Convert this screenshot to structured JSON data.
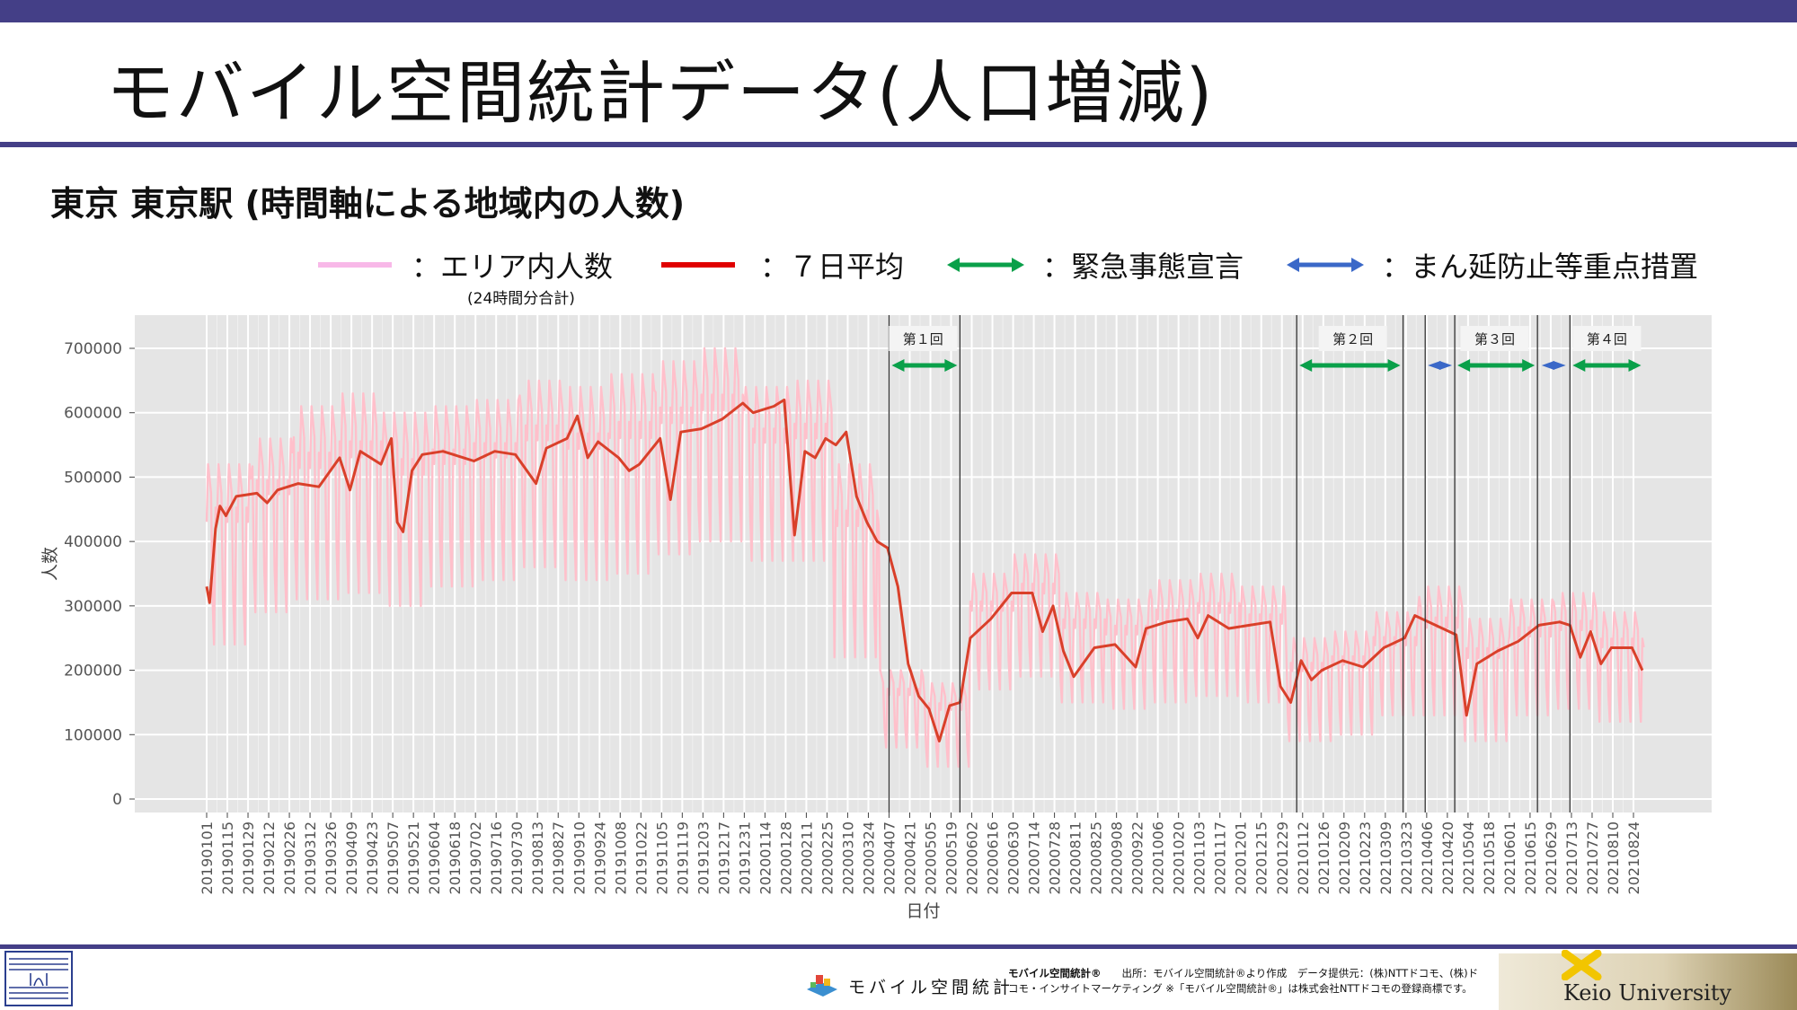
{
  "slide": {
    "title": "モバイル空間統計データ(人口増減)",
    "subtitle": "東京 東京駅 (時間軸による地域内の人数)"
  },
  "legend": {
    "items": [
      {
        "label": "：エリア内人数",
        "color": "#f8b8e8",
        "style": "line"
      },
      {
        "label": "：７日平均",
        "color": "#e00000",
        "style": "line"
      },
      {
        "label": "：緊急事態宣言",
        "color": "#0aa04a",
        "style": "double-arrow"
      },
      {
        "label": "：まん延防止等重点措置",
        "color": "#3a68c8",
        "style": "double-arrow"
      }
    ],
    "sub_label": "(24時間分合計)"
  },
  "chart_data": {
    "type": "line",
    "xlabel": "日付",
    "ylabel": "人数",
    "ylim": [
      0,
      720000
    ],
    "yticks": [
      0,
      100000,
      200000,
      300000,
      400000,
      500000,
      600000,
      700000
    ],
    "ytick_labels": [
      "0",
      "100000",
      "200000",
      "300000",
      "400000",
      "500000",
      "600000",
      "700000"
    ],
    "xlim": [
      "20190101",
      "20210831"
    ],
    "xtick_labels": [
      "20190101",
      "20190115",
      "20190129",
      "20190212",
      "20190226",
      "20190312",
      "20190326",
      "20190409",
      "20190423",
      "20190507",
      "20190521",
      "20190604",
      "20190618",
      "20190702",
      "20190716",
      "20190730",
      "20190813",
      "20190827",
      "20190910",
      "20190924",
      "20191008",
      "20191022",
      "20191105",
      "20191119",
      "20191203",
      "20191217",
      "20191231",
      "20200114",
      "20200128",
      "20200211",
      "20200225",
      "20200310",
      "20200324",
      "20200407",
      "20200421",
      "20200505",
      "20200519",
      "20200602",
      "20200616",
      "20200630",
      "20200714",
      "20200728",
      "20200811",
      "20200825",
      "20200908",
      "20200922",
      "20201006",
      "20201020",
      "20201103",
      "20201117",
      "20201201",
      "20201215",
      "20201229",
      "20210112",
      "20210126",
      "20210209",
      "20210223",
      "20210309",
      "20210323",
      "20210406",
      "20210420",
      "20210504",
      "20210518",
      "20210601",
      "20210615",
      "20210629",
      "20210713",
      "20210727",
      "20210810",
      "20210824"
    ],
    "background": "#e5e5e5",
    "grid": true,
    "series": [
      {
        "name": "エリア内人数",
        "color": "#ffc0cb",
        "note": "daily values; weekly pattern of weekday highs and weekend lows",
        "weekday_high_by_month": [
          {
            "month": "2019-01",
            "high": 520000,
            "low": 240000
          },
          {
            "month": "2019-02",
            "high": 560000,
            "low": 290000
          },
          {
            "month": "2019-03",
            "high": 610000,
            "low": 310000
          },
          {
            "month": "2019-04",
            "high": 630000,
            "low": 320000
          },
          {
            "month": "2019-05",
            "high": 600000,
            "low": 300000
          },
          {
            "month": "2019-06",
            "high": 610000,
            "low": 330000
          },
          {
            "month": "2019-07",
            "high": 620000,
            "low": 340000
          },
          {
            "month": "2019-08",
            "high": 650000,
            "low": 360000
          },
          {
            "month": "2019-09",
            "high": 640000,
            "low": 340000
          },
          {
            "month": "2019-10",
            "high": 660000,
            "low": 350000
          },
          {
            "month": "2019-11",
            "high": 680000,
            "low": 380000
          },
          {
            "month": "2019-12",
            "high": 700000,
            "low": 400000
          },
          {
            "month": "2020-01",
            "high": 640000,
            "low": 370000
          },
          {
            "month": "2020-02",
            "high": 650000,
            "low": 370000
          },
          {
            "month": "2020-03",
            "high": 520000,
            "low": 220000
          },
          {
            "month": "2020-04",
            "high": 200000,
            "low": 80000
          },
          {
            "month": "2020-05",
            "high": 180000,
            "low": 50000
          },
          {
            "month": "2020-06",
            "high": 350000,
            "low": 170000
          },
          {
            "month": "2020-07",
            "high": 380000,
            "low": 190000
          },
          {
            "month": "2020-08",
            "high": 320000,
            "low": 150000
          },
          {
            "month": "2020-09",
            "high": 310000,
            "low": 140000
          },
          {
            "month": "2020-10",
            "high": 340000,
            "low": 150000
          },
          {
            "month": "2020-11",
            "high": 350000,
            "low": 160000
          },
          {
            "month": "2020-12",
            "high": 330000,
            "low": 150000
          },
          {
            "month": "2021-01",
            "high": 250000,
            "low": 90000
          },
          {
            "month": "2021-02",
            "high": 260000,
            "low": 100000
          },
          {
            "month": "2021-03",
            "high": 290000,
            "low": 130000
          },
          {
            "month": "2021-04",
            "high": 330000,
            "low": 130000
          },
          {
            "month": "2021-05",
            "high": 280000,
            "low": 90000
          },
          {
            "month": "2021-06",
            "high": 310000,
            "low": 130000
          },
          {
            "month": "2021-07",
            "high": 320000,
            "low": 140000
          },
          {
            "month": "2021-08",
            "high": 290000,
            "low": 120000
          }
        ]
      },
      {
        "name": "7日平均",
        "color": "#d9402a",
        "points": [
          {
            "x": "20190101",
            "y": 330000
          },
          {
            "x": "20190103",
            "y": 305000
          },
          {
            "x": "20190107",
            "y": 420000
          },
          {
            "x": "20190110",
            "y": 455000
          },
          {
            "x": "20190114",
            "y": 440000
          },
          {
            "x": "20190121",
            "y": 470000
          },
          {
            "x": "20190204",
            "y": 475000
          },
          {
            "x": "20190211",
            "y": 460000
          },
          {
            "x": "20190218",
            "y": 480000
          },
          {
            "x": "20190304",
            "y": 490000
          },
          {
            "x": "20190318",
            "y": 485000
          },
          {
            "x": "20190401",
            "y": 530000
          },
          {
            "x": "20190408",
            "y": 480000
          },
          {
            "x": "20190415",
            "y": 540000
          },
          {
            "x": "20190429",
            "y": 520000
          },
          {
            "x": "20190506",
            "y": 560000
          },
          {
            "x": "20190510",
            "y": 430000
          },
          {
            "x": "20190514",
            "y": 415000
          },
          {
            "x": "20190520",
            "y": 510000
          },
          {
            "x": "20190527",
            "y": 535000
          },
          {
            "x": "20190610",
            "y": 540000
          },
          {
            "x": "20190701",
            "y": 525000
          },
          {
            "x": "20190715",
            "y": 540000
          },
          {
            "x": "20190729",
            "y": 535000
          },
          {
            "x": "20190812",
            "y": 490000
          },
          {
            "x": "20190819",
            "y": 545000
          },
          {
            "x": "20190902",
            "y": 560000
          },
          {
            "x": "20190909",
            "y": 595000
          },
          {
            "x": "20190916",
            "y": 530000
          },
          {
            "x": "20190923",
            "y": 555000
          },
          {
            "x": "20191007",
            "y": 530000
          },
          {
            "x": "20191014",
            "y": 510000
          },
          {
            "x": "20191021",
            "y": 520000
          },
          {
            "x": "20191104",
            "y": 560000
          },
          {
            "x": "20191111",
            "y": 465000
          },
          {
            "x": "20191118",
            "y": 570000
          },
          {
            "x": "20191202",
            "y": 575000
          },
          {
            "x": "20191216",
            "y": 590000
          },
          {
            "x": "20191230",
            "y": 615000
          },
          {
            "x": "20200106",
            "y": 600000
          },
          {
            "x": "20200120",
            "y": 610000
          },
          {
            "x": "20200127",
            "y": 620000
          },
          {
            "x": "20200203",
            "y": 410000
          },
          {
            "x": "20200210",
            "y": 540000
          },
          {
            "x": "20200217",
            "y": 530000
          },
          {
            "x": "20200224",
            "y": 560000
          },
          {
            "x": "20200302",
            "y": 550000
          },
          {
            "x": "20200309",
            "y": 570000
          },
          {
            "x": "20200316",
            "y": 470000
          },
          {
            "x": "20200323",
            "y": 430000
          },
          {
            "x": "20200330",
            "y": 400000
          },
          {
            "x": "20200406",
            "y": 390000
          },
          {
            "x": "20200413",
            "y": 330000
          },
          {
            "x": "20200420",
            "y": 210000
          },
          {
            "x": "20200427",
            "y": 160000
          },
          {
            "x": "20200504",
            "y": 140000
          },
          {
            "x": "20200511",
            "y": 90000
          },
          {
            "x": "20200518",
            "y": 145000
          },
          {
            "x": "20200525",
            "y": 150000
          },
          {
            "x": "20200601",
            "y": 250000
          },
          {
            "x": "20200615",
            "y": 280000
          },
          {
            "x": "20200629",
            "y": 320000
          },
          {
            "x": "20200713",
            "y": 320000
          },
          {
            "x": "20200720",
            "y": 260000
          },
          {
            "x": "20200727",
            "y": 300000
          },
          {
            "x": "20200803",
            "y": 230000
          },
          {
            "x": "20200810",
            "y": 190000
          },
          {
            "x": "20200824",
            "y": 235000
          },
          {
            "x": "20200907",
            "y": 240000
          },
          {
            "x": "20200921",
            "y": 205000
          },
          {
            "x": "20200928",
            "y": 265000
          },
          {
            "x": "20201012",
            "y": 275000
          },
          {
            "x": "20201026",
            "y": 280000
          },
          {
            "x": "20201102",
            "y": 250000
          },
          {
            "x": "20201109",
            "y": 285000
          },
          {
            "x": "20201123",
            "y": 265000
          },
          {
            "x": "20201207",
            "y": 270000
          },
          {
            "x": "20201221",
            "y": 275000
          },
          {
            "x": "20201228",
            "y": 175000
          },
          {
            "x": "20210104",
            "y": 150000
          },
          {
            "x": "20210111",
            "y": 215000
          },
          {
            "x": "20210118",
            "y": 185000
          },
          {
            "x": "20210125",
            "y": 200000
          },
          {
            "x": "20210208",
            "y": 215000
          },
          {
            "x": "20210222",
            "y": 205000
          },
          {
            "x": "20210308",
            "y": 235000
          },
          {
            "x": "20210322",
            "y": 250000
          },
          {
            "x": "20210329",
            "y": 285000
          },
          {
            "x": "20210412",
            "y": 270000
          },
          {
            "x": "20210426",
            "y": 255000
          },
          {
            "x": "20210503",
            "y": 130000
          },
          {
            "x": "20210510",
            "y": 210000
          },
          {
            "x": "20210524",
            "y": 230000
          },
          {
            "x": "20210607",
            "y": 245000
          },
          {
            "x": "20210621",
            "y": 270000
          },
          {
            "x": "20210705",
            "y": 275000
          },
          {
            "x": "20210712",
            "y": 270000
          },
          {
            "x": "20210719",
            "y": 220000
          },
          {
            "x": "20210726",
            "y": 260000
          },
          {
            "x": "20210802",
            "y": 210000
          },
          {
            "x": "20210809",
            "y": 235000
          },
          {
            "x": "20210823",
            "y": 235000
          },
          {
            "x": "20210830",
            "y": 200000
          }
        ]
      }
    ],
    "vertical_lines": [
      "20200407",
      "20200525",
      "20210108",
      "20210321",
      "20210405",
      "20210425",
      "20210620",
      "20210712"
    ],
    "periods": [
      {
        "type": "emergency",
        "start": "20200407",
        "end": "20200525",
        "label": "第１回"
      },
      {
        "type": "emergency",
        "start": "20210108",
        "end": "20210321",
        "label": "第２回"
      },
      {
        "type": "priority",
        "start": "20210405",
        "end": "20210425",
        "label": ""
      },
      {
        "type": "emergency",
        "start": "20210425",
        "end": "20210620",
        "label": "第３回"
      },
      {
        "type": "priority",
        "start": "20210621",
        "end": "20210711",
        "label": ""
      },
      {
        "type": "emergency",
        "start": "20210712",
        "end": "20210831",
        "label": "第４回"
      }
    ],
    "period_label_positions": {
      "第１回": "20200430",
      "第２回": "20210215",
      "第３回": "20210522",
      "第４回": "20210806"
    }
  },
  "footer": {
    "brand_text": "モバイル空間統計",
    "note_line1_bold": "モバイル空間統計®",
    "note_line1": "　　出所：モバイル空間統計®より作成　データ提供元：(株)NTTドコモ、(株)ド",
    "note_line2": "コモ・インサイトマーケティング ※「モバイル空間統計®」は株式会社NTTドコモの登録商標です。",
    "university": "Keio University"
  },
  "colors": {
    "header_bar": "#443f87",
    "emergency_arrow": "#0aa04a",
    "priority_arrow": "#3a68c8"
  }
}
